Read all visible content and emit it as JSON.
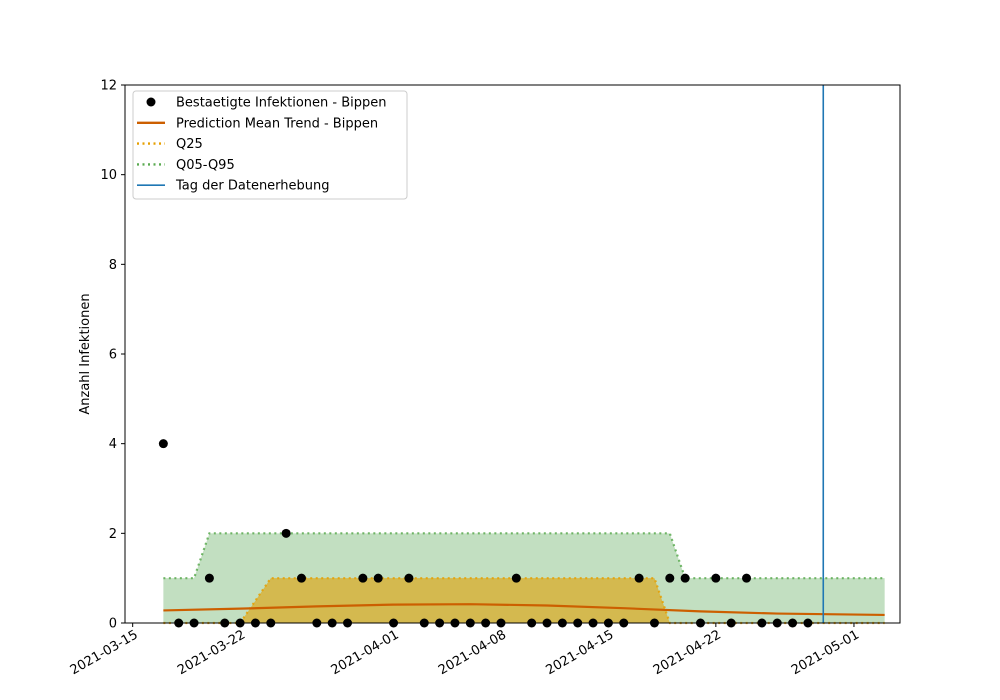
{
  "chart_data": {
    "type": "scatter",
    "title": "",
    "xlabel": "",
    "ylabel": "Anzahl Infektionen",
    "xlim": [
      "2021-03-14T12:00",
      "2021-05-04"
    ],
    "ylim": [
      0,
      12
    ],
    "y_ticks": [
      0,
      2,
      4,
      6,
      8,
      10,
      12
    ],
    "x_ticks": [
      {
        "date": "2021-03-15",
        "label": "2021-03-15"
      },
      {
        "date": "2021-03-22",
        "label": "2021-03-22"
      },
      {
        "date": "2021-04-01",
        "label": "2021-04-01"
      },
      {
        "date": "2021-04-08",
        "label": "2021-04-08"
      },
      {
        "date": "2021-04-15",
        "label": "2021-04-15"
      },
      {
        "date": "2021-04-22",
        "label": "2021-04-22"
      },
      {
        "date": "2021-05-01",
        "label": "2021-05-01"
      }
    ],
    "grid": false,
    "legend_position": "top-left",
    "series": [
      {
        "name": "Bestaetigte Infektionen - Bippen",
        "kind": "scatter",
        "color": "#000000",
        "x": [
          "2021-03-17",
          "2021-03-18",
          "2021-03-19",
          "2021-03-20",
          "2021-03-21",
          "2021-03-22",
          "2021-03-23",
          "2021-03-24",
          "2021-03-25",
          "2021-03-26",
          "2021-03-27",
          "2021-03-28",
          "2021-03-29",
          "2021-03-30",
          "2021-03-31",
          "2021-04-01",
          "2021-04-02",
          "2021-04-03",
          "2021-04-04",
          "2021-04-05",
          "2021-04-06",
          "2021-04-07",
          "2021-04-08",
          "2021-04-09",
          "2021-04-10",
          "2021-04-11",
          "2021-04-12",
          "2021-04-13",
          "2021-04-14",
          "2021-04-15",
          "2021-04-16",
          "2021-04-17",
          "2021-04-18",
          "2021-04-19",
          "2021-04-20",
          "2021-04-21",
          "2021-04-22",
          "2021-04-23",
          "2021-04-24",
          "2021-04-25",
          "2021-04-26",
          "2021-04-27",
          "2021-04-28"
        ],
        "y": [
          4,
          0,
          0,
          1,
          0,
          0,
          0,
          0,
          2,
          1,
          0,
          0,
          0,
          1,
          1,
          0,
          1,
          0,
          0,
          0,
          0,
          0,
          0,
          1,
          0,
          0,
          0,
          0,
          0,
          0,
          0,
          1,
          0,
          1,
          1,
          0,
          1,
          0,
          1,
          0,
          0,
          0,
          0
        ]
      },
      {
        "name": "Prediction Mean Trend - Bippen",
        "kind": "line",
        "color": "#cc5f00",
        "x": [
          "2021-03-17",
          "2021-03-22",
          "2021-03-27",
          "2021-04-01",
          "2021-04-06",
          "2021-04-11",
          "2021-04-16",
          "2021-04-21",
          "2021-04-26",
          "2021-05-03"
        ],
        "y": [
          0.28,
          0.32,
          0.37,
          0.41,
          0.42,
          0.39,
          0.33,
          0.26,
          0.21,
          0.18
        ]
      },
      {
        "name": "Q25",
        "kind": "band",
        "color": "#e69f00",
        "fill": "#d4b94f",
        "x": [
          "2021-03-17",
          "2021-03-22",
          "2021-03-23",
          "2021-03-24",
          "2021-04-18",
          "2021-04-19",
          "2021-05-03"
        ],
        "lower": [
          0,
          0,
          0,
          0,
          0,
          0,
          0
        ],
        "upper": [
          0,
          0,
          0.5,
          1,
          1,
          0,
          0
        ]
      },
      {
        "name": "Q05-Q95",
        "kind": "band",
        "color": "#5aaa50",
        "fill": "#c2dfc1",
        "x": [
          "2021-03-17",
          "2021-03-19",
          "2021-03-20",
          "2021-04-19",
          "2021-04-20",
          "2021-05-03"
        ],
        "lower": [
          0,
          0,
          0,
          0,
          0,
          0
        ],
        "upper": [
          1,
          1,
          2,
          2,
          1,
          1
        ]
      },
      {
        "name": "Tag der Datenerhebung",
        "kind": "vline",
        "color": "#1f77b4",
        "x": "2021-04-29"
      }
    ]
  }
}
